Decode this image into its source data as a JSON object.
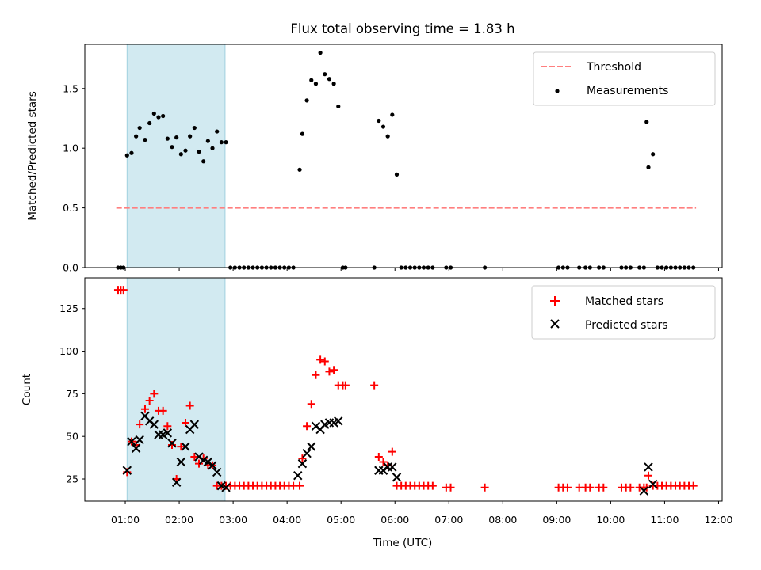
{
  "chart_data": [
    {
      "type": "scatter",
      "title": "Flux total observing time = 1.83 h",
      "xlabel": "",
      "ylabel": "Matched/Predicted stars",
      "ylim": [
        0,
        1.87
      ],
      "xlim": [
        "00:15",
        "12:04"
      ],
      "yticks": [
        "0.0",
        "0.5",
        "1.0",
        "1.5"
      ],
      "highlight_span": {
        "x_start": "01:02",
        "x_end": "02:51",
        "color": "#add8e6"
      },
      "legend": {
        "position": "top-right",
        "entries": [
          "Threshold",
          "Measurements"
        ]
      },
      "series": [
        {
          "name": "Threshold",
          "style": "dashed-line",
          "color": "#ff7f7f",
          "x": [
            "00:50",
            "11:35"
          ],
          "y": [
            0.5,
            0.5
          ]
        },
        {
          "name": "Measurements",
          "style": "dot",
          "color": "#000000",
          "x": [
            "00:52",
            "00:55",
            "00:58",
            "01:02",
            "01:07",
            "01:12",
            "01:16",
            "01:22",
            "01:27",
            "01:32",
            "01:37",
            "01:42",
            "01:47",
            "01:52",
            "01:57",
            "02:02",
            "02:07",
            "02:12",
            "02:17",
            "02:22",
            "02:27",
            "02:32",
            "02:37",
            "02:42",
            "02:47",
            "02:52",
            "02:57",
            "03:02",
            "03:07",
            "03:12",
            "03:17",
            "03:22",
            "03:27",
            "03:32",
            "03:37",
            "03:42",
            "03:47",
            "03:52",
            "03:57",
            "04:02",
            "04:07",
            "04:14",
            "04:17",
            "04:22",
            "04:27",
            "04:32",
            "04:37",
            "04:42",
            "04:47",
            "04:52",
            "04:57",
            "05:02",
            "05:05",
            "05:37",
            "05:42",
            "05:47",
            "05:52",
            "05:57",
            "06:02",
            "06:07",
            "06:12",
            "06:17",
            "06:22",
            "06:27",
            "06:32",
            "06:37",
            "06:42",
            "06:57",
            "07:02",
            "07:40",
            "09:02",
            "09:07",
            "09:12",
            "09:25",
            "09:32",
            "09:37",
            "09:47",
            "09:52",
            "10:12",
            "10:17",
            "10:22",
            "10:32",
            "10:37",
            "10:40",
            "10:42",
            "10:47",
            "10:52",
            "10:57",
            "11:02",
            "11:07",
            "11:12",
            "11:17",
            "11:22",
            "11:27",
            "11:32"
          ],
          "y": [
            0,
            0,
            0,
            0.94,
            0.96,
            1.1,
            1.17,
            1.07,
            1.21,
            1.29,
            1.26,
            1.27,
            1.08,
            1.01,
            1.09,
            0.95,
            0.98,
            1.1,
            1.17,
            0.97,
            0.89,
            1.06,
            1.0,
            1.14,
            1.05,
            1.05,
            0,
            0,
            0,
            0,
            0,
            0,
            0,
            0,
            0,
            0,
            0,
            0,
            0,
            0,
            0,
            0.82,
            1.12,
            1.4,
            1.57,
            1.54,
            1.8,
            1.62,
            1.58,
            1.54,
            1.35,
            0,
            0,
            0,
            1.23,
            1.18,
            1.1,
            1.28,
            0.78,
            0,
            0,
            0,
            0,
            0,
            0,
            0,
            0,
            0,
            0,
            0,
            0,
            0,
            0,
            0,
            0,
            0,
            0,
            0,
            0,
            0,
            0,
            0,
            0,
            1.22,
            0.84,
            0.95,
            0,
            0,
            0,
            0,
            0,
            0,
            0,
            0,
            0
          ]
        }
      ]
    },
    {
      "type": "scatter",
      "title": "",
      "xlabel": "Time (UTC)",
      "ylabel": "Count",
      "ylim": [
        12,
        143
      ],
      "xlim": [
        "00:15",
        "12:04"
      ],
      "xticks": [
        "01:00",
        "02:00",
        "03:00",
        "04:00",
        "05:00",
        "06:00",
        "07:00",
        "08:00",
        "09:00",
        "10:00",
        "11:00",
        "12:00"
      ],
      "yticks": [
        "25",
        "50",
        "75",
        "100",
        "125"
      ],
      "highlight_span": {
        "x_start": "01:02",
        "x_end": "02:51",
        "color": "#add8e6"
      },
      "legend": {
        "position": "top-right",
        "entries": [
          "Matched stars",
          "Predicted stars"
        ]
      },
      "series": [
        {
          "name": "Matched stars",
          "marker": "+",
          "color": "#ff0000",
          "x": [
            "00:52",
            "00:55",
            "00:58",
            "01:02",
            "01:07",
            "01:12",
            "01:16",
            "01:22",
            "01:27",
            "01:32",
            "01:37",
            "01:42",
            "01:47",
            "01:52",
            "01:57",
            "02:02",
            "02:07",
            "02:12",
            "02:17",
            "02:22",
            "02:27",
            "02:32",
            "02:37",
            "02:42",
            "02:47",
            "02:52",
            "02:57",
            "03:02",
            "03:07",
            "03:12",
            "03:17",
            "03:22",
            "03:27",
            "03:32",
            "03:37",
            "03:42",
            "03:47",
            "03:52",
            "03:57",
            "04:02",
            "04:07",
            "04:14",
            "04:17",
            "04:22",
            "04:27",
            "04:32",
            "04:37",
            "04:42",
            "04:47",
            "04:52",
            "04:57",
            "05:02",
            "05:05",
            "05:37",
            "05:42",
            "05:47",
            "05:52",
            "05:57",
            "06:02",
            "06:07",
            "06:12",
            "06:17",
            "06:22",
            "06:27",
            "06:32",
            "06:37",
            "06:42",
            "06:57",
            "07:02",
            "07:40",
            "09:02",
            "09:07",
            "09:12",
            "09:25",
            "09:32",
            "09:37",
            "09:47",
            "09:52",
            "10:12",
            "10:17",
            "10:22",
            "10:32",
            "10:37",
            "10:40",
            "10:42",
            "10:47",
            "10:52",
            "10:57",
            "11:02",
            "11:07",
            "11:12",
            "11:17",
            "11:22",
            "11:27",
            "11:32"
          ],
          "y": [
            136,
            136,
            136,
            29,
            47,
            45,
            57,
            66,
            71,
            75,
            65,
            65,
            56,
            45,
            25,
            44,
            58,
            68,
            38,
            34,
            37,
            33,
            33,
            21,
            21,
            21,
            21,
            21,
            21,
            21,
            21,
            21,
            21,
            21,
            21,
            21,
            21,
            21,
            21,
            21,
            21,
            21,
            37,
            56,
            69,
            86,
            95,
            94,
            88,
            89,
            80,
            80,
            80,
            80,
            38,
            35,
            33,
            41,
            21,
            21,
            21,
            21,
            21,
            21,
            21,
            21,
            21,
            20,
            20,
            20,
            20,
            20,
            20,
            20,
            20,
            20,
            20,
            20,
            20,
            20,
            20,
            20,
            20,
            20,
            27,
            21,
            21,
            21,
            21,
            21,
            21,
            21,
            21,
            21,
            21
          ]
        },
        {
          "name": "Predicted stars",
          "marker": "x",
          "color": "#000000",
          "x": [
            "01:02",
            "01:07",
            "01:12",
            "01:16",
            "01:22",
            "01:27",
            "01:32",
            "01:37",
            "01:42",
            "01:47",
            "01:52",
            "01:57",
            "02:02",
            "02:07",
            "02:12",
            "02:17",
            "02:22",
            "02:27",
            "02:32",
            "02:37",
            "02:42",
            "02:47",
            "02:52",
            "04:12",
            "04:17",
            "04:22",
            "04:27",
            "04:32",
            "04:37",
            "04:42",
            "04:47",
            "04:52",
            "04:57",
            "05:42",
            "05:47",
            "05:52",
            "05:57",
            "06:02",
            "10:37",
            "10:42",
            "10:47"
          ],
          "y": [
            30,
            47,
            43,
            48,
            62,
            59,
            57,
            51,
            51,
            52,
            46,
            23,
            35,
            44,
            54,
            57,
            38,
            36,
            35,
            33,
            29,
            21,
            20,
            27,
            34,
            40,
            44,
            56,
            54,
            57,
            58,
            58,
            59,
            30,
            30,
            32,
            32,
            26,
            18,
            32,
            22
          ]
        }
      ]
    }
  ]
}
